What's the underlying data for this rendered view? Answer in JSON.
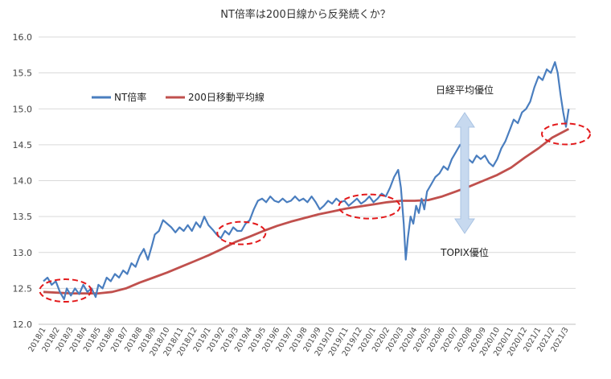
{
  "chart_data": {
    "type": "line",
    "title": "NT倍率は200日線から反発続くか？",
    "xlabel": "",
    "ylabel": "",
    "ylim": [
      12.0,
      16.0
    ],
    "yticks": [
      "12.0",
      "12.5",
      "13.0",
      "13.5",
      "14.0",
      "14.5",
      "15.0",
      "15.5",
      "16.0"
    ],
    "x_tick_labels": [
      "2018/1",
      "2018/2",
      "2018/3",
      "2018/4",
      "2018/5",
      "2018/6",
      "2018/7",
      "2018/8",
      "2018/9",
      "2018/10",
      "2018/11",
      "2018/12",
      "2019/1",
      "2019/2",
      "2019/3",
      "2019/4",
      "2019/5",
      "2019/6",
      "2019/7",
      "2019/8",
      "2019/9",
      "2019/10",
      "2019/11",
      "2019/12",
      "2020/1",
      "2020/2",
      "2020/3",
      "2020/4",
      "2020/5",
      "2020/6",
      "2020/7",
      "2020/8",
      "2020/9",
      "2020/10",
      "2020/11",
      "2020/12",
      "2021/1",
      "2021/2",
      "2021/3"
    ],
    "grid": "horizontal",
    "legend_position": "upper-left",
    "series": [
      {
        "name": "NT倍率",
        "color": "#4a7ebf",
        "values": [
          [
            0,
            12.6
          ],
          [
            0.3,
            12.65
          ],
          [
            0.6,
            12.55
          ],
          [
            0.9,
            12.6
          ],
          [
            1.2,
            12.45
          ],
          [
            1.5,
            12.35
          ],
          [
            1.7,
            12.5
          ],
          [
            2.0,
            12.4
          ],
          [
            2.3,
            12.5
          ],
          [
            2.6,
            12.42
          ],
          [
            2.9,
            12.55
          ],
          [
            3.2,
            12.45
          ],
          [
            3.5,
            12.5
          ],
          [
            3.8,
            12.38
          ],
          [
            4.0,
            12.55
          ],
          [
            4.3,
            12.5
          ],
          [
            4.6,
            12.65
          ],
          [
            4.9,
            12.6
          ],
          [
            5.2,
            12.7
          ],
          [
            5.5,
            12.65
          ],
          [
            5.8,
            12.75
          ],
          [
            6.1,
            12.7
          ],
          [
            6.4,
            12.85
          ],
          [
            6.7,
            12.8
          ],
          [
            7.0,
            12.95
          ],
          [
            7.3,
            13.05
          ],
          [
            7.6,
            12.9
          ],
          [
            7.9,
            13.1
          ],
          [
            8.1,
            13.25
          ],
          [
            8.4,
            13.3
          ],
          [
            8.7,
            13.45
          ],
          [
            9.0,
            13.4
          ],
          [
            9.3,
            13.35
          ],
          [
            9.6,
            13.28
          ],
          [
            9.9,
            13.35
          ],
          [
            10.2,
            13.3
          ],
          [
            10.5,
            13.38
          ],
          [
            10.8,
            13.3
          ],
          [
            11.1,
            13.42
          ],
          [
            11.4,
            13.35
          ],
          [
            11.7,
            13.5
          ],
          [
            12.0,
            13.38
          ],
          [
            12.3,
            13.32
          ],
          [
            12.6,
            13.25
          ],
          [
            12.9,
            13.2
          ],
          [
            13.2,
            13.3
          ],
          [
            13.5,
            13.25
          ],
          [
            13.8,
            13.35
          ],
          [
            14.1,
            13.3
          ],
          [
            14.4,
            13.3
          ],
          [
            14.7,
            13.4
          ],
          [
            15.0,
            13.45
          ],
          [
            15.3,
            13.6
          ],
          [
            15.6,
            13.72
          ],
          [
            15.9,
            13.75
          ],
          [
            16.2,
            13.7
          ],
          [
            16.5,
            13.78
          ],
          [
            16.8,
            13.72
          ],
          [
            17.1,
            13.7
          ],
          [
            17.4,
            13.75
          ],
          [
            17.7,
            13.7
          ],
          [
            18.0,
            13.72
          ],
          [
            18.3,
            13.78
          ],
          [
            18.6,
            13.72
          ],
          [
            18.9,
            13.75
          ],
          [
            19.2,
            13.7
          ],
          [
            19.5,
            13.78
          ],
          [
            19.8,
            13.7
          ],
          [
            20.1,
            13.6
          ],
          [
            20.4,
            13.65
          ],
          [
            20.7,
            13.72
          ],
          [
            21.0,
            13.68
          ],
          [
            21.3,
            13.75
          ],
          [
            21.6,
            13.7
          ],
          [
            21.9,
            13.72
          ],
          [
            22.2,
            13.65
          ],
          [
            22.5,
            13.7
          ],
          [
            22.8,
            13.75
          ],
          [
            23.1,
            13.68
          ],
          [
            23.4,
            13.72
          ],
          [
            23.7,
            13.78
          ],
          [
            24.0,
            13.7
          ],
          [
            24.3,
            13.75
          ],
          [
            24.6,
            13.82
          ],
          [
            24.9,
            13.78
          ],
          [
            25.2,
            13.9
          ],
          [
            25.5,
            14.05
          ],
          [
            25.8,
            14.15
          ],
          [
            26.0,
            13.9
          ],
          [
            26.2,
            13.4
          ],
          [
            26.35,
            12.9
          ],
          [
            26.5,
            13.2
          ],
          [
            26.7,
            13.5
          ],
          [
            26.9,
            13.4
          ],
          [
            27.1,
            13.65
          ],
          [
            27.3,
            13.55
          ],
          [
            27.5,
            13.75
          ],
          [
            27.7,
            13.6
          ],
          [
            27.9,
            13.85
          ],
          [
            28.2,
            13.95
          ],
          [
            28.5,
            14.05
          ],
          [
            28.8,
            14.1
          ],
          [
            29.1,
            14.2
          ],
          [
            29.4,
            14.15
          ],
          [
            29.7,
            14.3
          ],
          [
            30.0,
            14.4
          ],
          [
            30.3,
            14.5
          ],
          [
            30.6,
            14.45
          ],
          [
            30.9,
            14.3
          ],
          [
            31.2,
            14.25
          ],
          [
            31.5,
            14.35
          ],
          [
            31.8,
            14.3
          ],
          [
            32.1,
            14.35
          ],
          [
            32.4,
            14.25
          ],
          [
            32.7,
            14.2
          ],
          [
            33.0,
            14.3
          ],
          [
            33.3,
            14.45
          ],
          [
            33.6,
            14.55
          ],
          [
            33.9,
            14.7
          ],
          [
            34.2,
            14.85
          ],
          [
            34.5,
            14.8
          ],
          [
            34.8,
            14.95
          ],
          [
            35.1,
            15.0
          ],
          [
            35.4,
            15.1
          ],
          [
            35.7,
            15.3
          ],
          [
            36.0,
            15.45
          ],
          [
            36.3,
            15.4
          ],
          [
            36.6,
            15.55
          ],
          [
            36.9,
            15.5
          ],
          [
            37.2,
            15.65
          ],
          [
            37.4,
            15.5
          ],
          [
            37.6,
            15.2
          ],
          [
            37.8,
            14.95
          ],
          [
            38.0,
            14.75
          ],
          [
            38.2,
            15.0
          ]
        ]
      },
      {
        "name": "200日移動平均線",
        "color": "#c0504d",
        "values": [
          [
            0,
            12.45
          ],
          [
            2,
            12.43
          ],
          [
            4,
            12.43
          ],
          [
            5,
            12.45
          ],
          [
            6,
            12.5
          ],
          [
            7,
            12.58
          ],
          [
            8,
            12.65
          ],
          [
            9,
            12.72
          ],
          [
            10,
            12.8
          ],
          [
            11,
            12.88
          ],
          [
            12,
            12.96
          ],
          [
            13,
            13.05
          ],
          [
            14,
            13.15
          ],
          [
            15,
            13.22
          ],
          [
            16,
            13.3
          ],
          [
            17,
            13.37
          ],
          [
            18,
            13.43
          ],
          [
            19,
            13.48
          ],
          [
            20,
            13.53
          ],
          [
            21,
            13.57
          ],
          [
            22,
            13.61
          ],
          [
            23,
            13.64
          ],
          [
            24,
            13.67
          ],
          [
            25,
            13.7
          ],
          [
            26,
            13.72
          ],
          [
            27,
            13.72
          ],
          [
            28,
            13.73
          ],
          [
            29,
            13.78
          ],
          [
            30,
            13.85
          ],
          [
            31,
            13.92
          ],
          [
            32,
            14.0
          ],
          [
            33,
            14.08
          ],
          [
            34,
            14.18
          ],
          [
            35,
            14.32
          ],
          [
            36,
            14.45
          ],
          [
            37,
            14.6
          ],
          [
            38.2,
            14.72
          ]
        ]
      }
    ],
    "annotations": [
      {
        "text": "日経平均優位",
        "arrow": "up"
      },
      {
        "text": "TOPIX優位",
        "arrow": "down"
      }
    ],
    "highlights": [
      {
        "type": "dashed-ellipse",
        "color": "#e31a1c",
        "x_center": 1.6,
        "y_center": 12.47
      },
      {
        "type": "dashed-ellipse",
        "color": "#e31a1c",
        "x_center": 14.4,
        "y_center": 13.27
      },
      {
        "type": "dashed-ellipse",
        "color": "#e31a1c",
        "x_center": 23.7,
        "y_center": 13.64
      },
      {
        "type": "dashed-ellipse",
        "color": "#e31a1c",
        "x_center": 38.0,
        "y_center": 14.65
      }
    ]
  }
}
